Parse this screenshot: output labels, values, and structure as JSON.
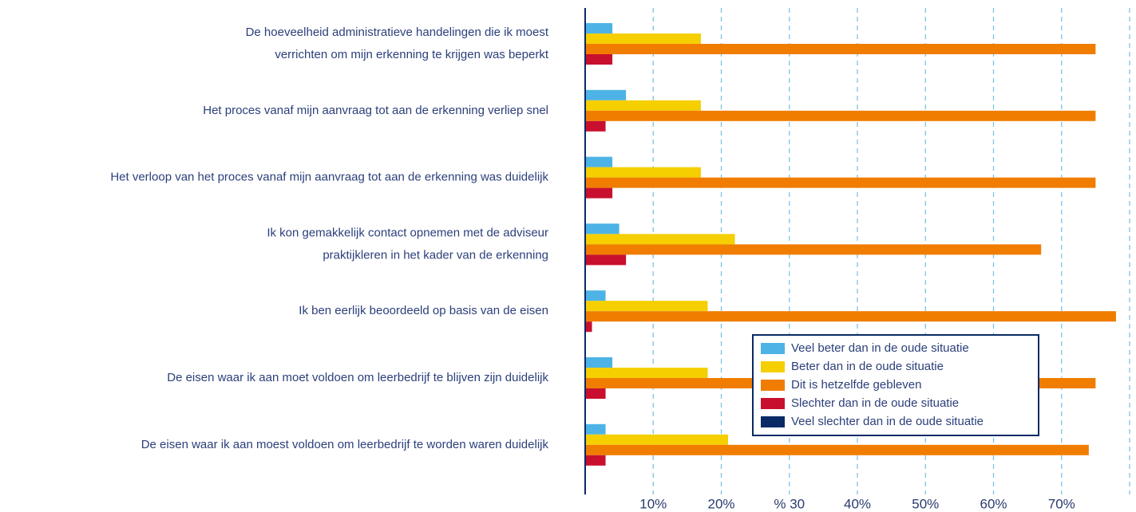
{
  "chart_data": {
    "type": "bar",
    "orientation": "horizontal",
    "categories": [
      "De hoeveelheid administratieve handelingen die ik moest\nverrichten  om mijn erkenning te krijgen was beperkt",
      "Het proces vanaf mijn aanvraag tot aan de erkenning verliep snel",
      "Het verloop van het proces vanaf mijn aanvraag tot aan de erkenning was duidelijk",
      "Ik kon gemakkelijk contact opnemen met de adviseur\npraktijkleren in het kader van de erkenning",
      "Ik ben eerlijk beoordeeld op basis van de eisen",
      "De eisen waar ik aan moet voldoen om leerbedrijf te blijven zijn duidelijk",
      "De eisen waar ik aan moest voldoen om leerbedrijf te worden waren duidelijk"
    ],
    "series": [
      {
        "name": "Veel beter dan in de oude situatie",
        "color": "#4db3e6",
        "values": [
          4,
          6,
          4,
          5,
          3,
          4,
          3
        ]
      },
      {
        "name": "Beter dan in de oude situatie",
        "color": "#f5cf00",
        "values": [
          17,
          17,
          17,
          22,
          18,
          18,
          21
        ]
      },
      {
        "name": "Dit is hetzelfde gebleven",
        "color": "#f07d00",
        "values": [
          75,
          75,
          75,
          67,
          78,
          75,
          74
        ]
      },
      {
        "name": "Slechter dan in de oude situatie",
        "color": "#c8102e",
        "values": [
          4,
          3,
          4,
          6,
          1,
          3,
          3
        ]
      },
      {
        "name": "Veel slechter dan in de oude situatie",
        "color": "#0a2a66",
        "values": [
          0,
          0,
          0,
          0,
          0,
          0,
          0
        ]
      }
    ],
    "xlim": [
      0,
      80
    ],
    "xticks": [
      {
        "value": 10,
        "label": "10%"
      },
      {
        "value": 20,
        "label": "20%"
      },
      {
        "value": 30,
        "label": "% 30"
      },
      {
        "value": 40,
        "label": "40%"
      },
      {
        "value": 50,
        "label": "50%"
      },
      {
        "value": 60,
        "label": "60%"
      },
      {
        "value": 70,
        "label": "70%"
      }
    ],
    "grid": true,
    "legend": "lower right"
  }
}
